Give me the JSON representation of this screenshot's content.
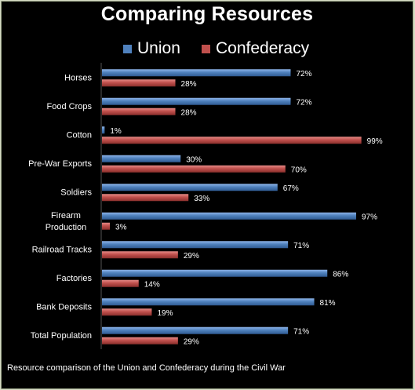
{
  "chart_data": {
    "type": "bar",
    "orientation": "horizontal",
    "title": "Comparing Resources",
    "categories": [
      "Horses",
      "Food Crops",
      "Cotton",
      "Pre-War Exports",
      "Soldiers",
      "Firearm Production",
      "Railroad Tracks",
      "Factories",
      "Bank Deposits",
      "Total Population"
    ],
    "series": [
      {
        "name": "Union",
        "color": "#4f81bd",
        "values": [
          72,
          72,
          1,
          30,
          67,
          97,
          71,
          86,
          81,
          71
        ]
      },
      {
        "name": "Confederacy",
        "color": "#c0504d",
        "values": [
          28,
          28,
          99,
          70,
          33,
          3,
          29,
          14,
          19,
          29
        ]
      }
    ],
    "value_suffix": "%",
    "xlim": [
      0,
      100
    ],
    "legend_position": "top",
    "grid": false
  },
  "caption": "Resource comparison of the Union and Confederacy during the Civil War"
}
